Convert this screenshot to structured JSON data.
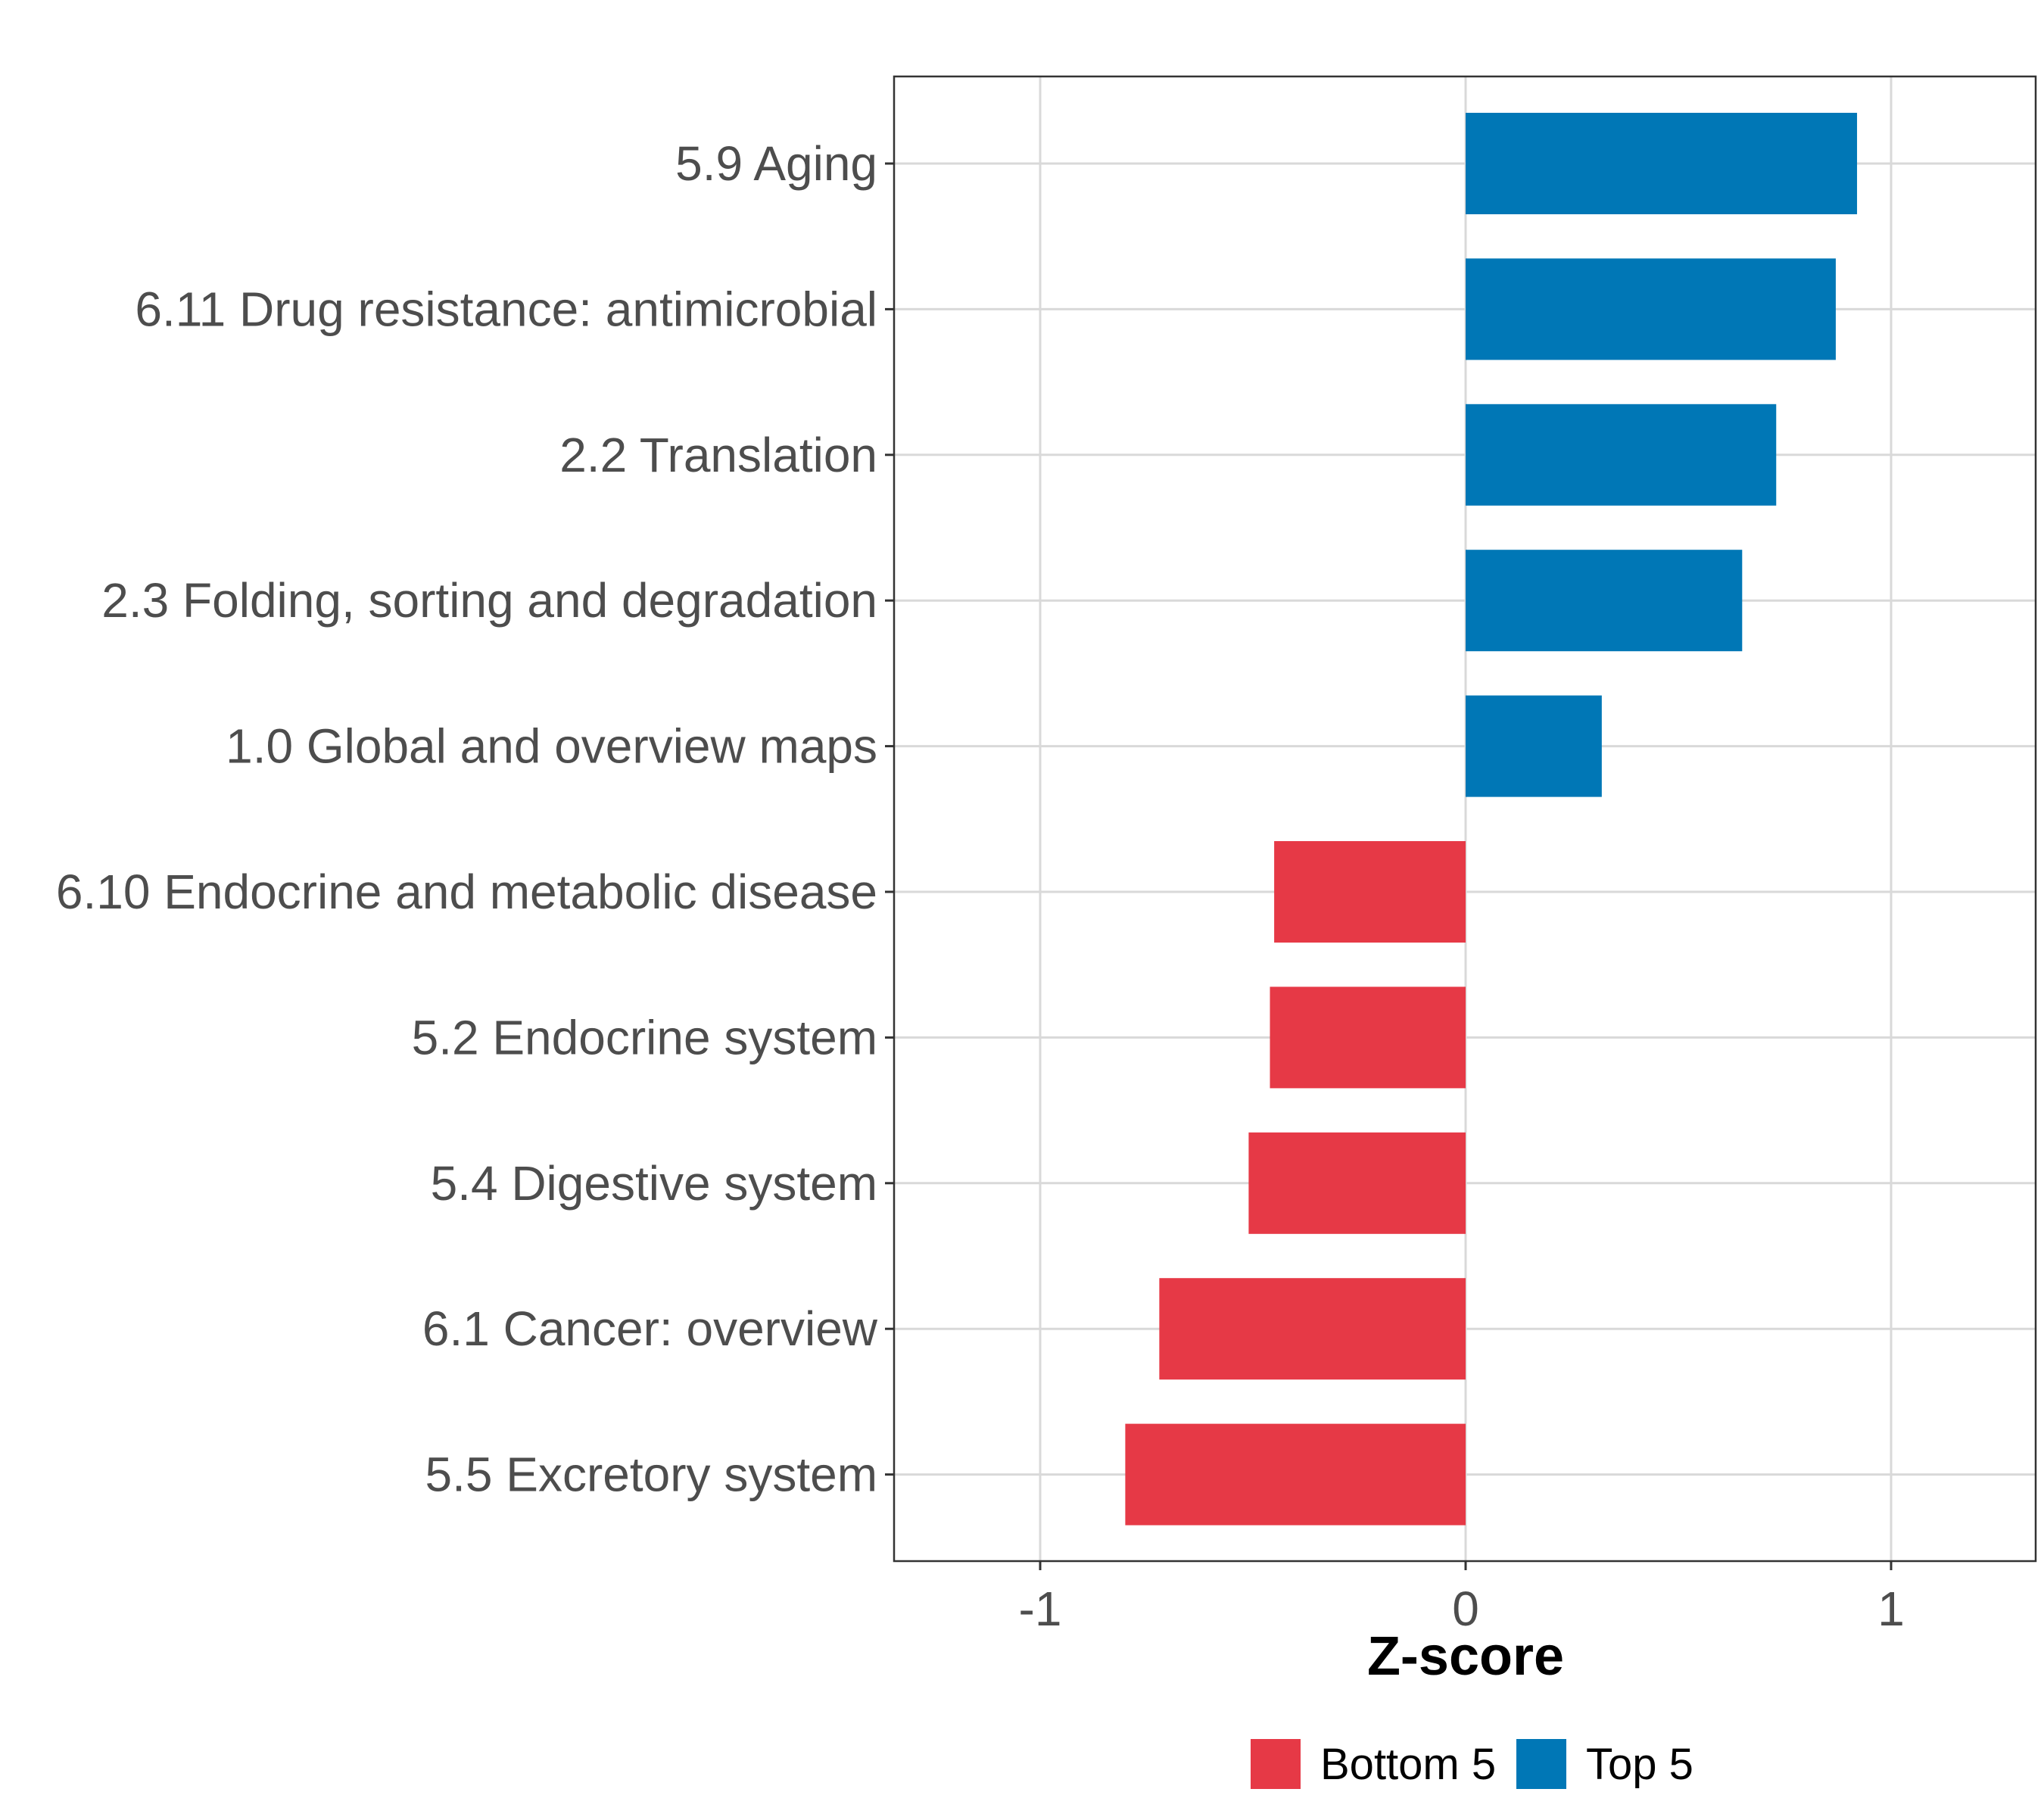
{
  "chart_data": {
    "type": "bar",
    "orientation": "horizontal",
    "title": "",
    "xlabel": "Z-score",
    "ylabel": "",
    "xlim": [
      -1.34,
      1.34
    ],
    "xticks": [
      {
        "value": -1,
        "label": "-1"
      },
      {
        "value": 0,
        "label": "0"
      },
      {
        "value": 1,
        "label": "1"
      }
    ],
    "grid": true,
    "legend_position": "bottom",
    "categories": [
      "5.9 Aging",
      "6.11 Drug resistance: antimicrobial",
      "2.2 Translation",
      "2.3 Folding, sorting and degradation",
      "1.0 Global and overview maps",
      "6.10 Endocrine and metabolic disease",
      "5.2 Endocrine system",
      "5.4 Digestive system",
      "6.1 Cancer: overview",
      "5.5 Excretory system"
    ],
    "values": [
      0.92,
      0.87,
      0.73,
      0.65,
      0.32,
      -0.45,
      -0.46,
      -0.51,
      -0.72,
      -0.8
    ],
    "groups": [
      "Top 5",
      "Top 5",
      "Top 5",
      "Top 5",
      "Top 5",
      "Bottom 5",
      "Bottom 5",
      "Bottom 5",
      "Bottom 5",
      "Bottom 5"
    ],
    "legend": [
      {
        "name": "Bottom 5",
        "color": "#e63946"
      },
      {
        "name": "Top 5",
        "color": "#0077b6"
      }
    ]
  }
}
